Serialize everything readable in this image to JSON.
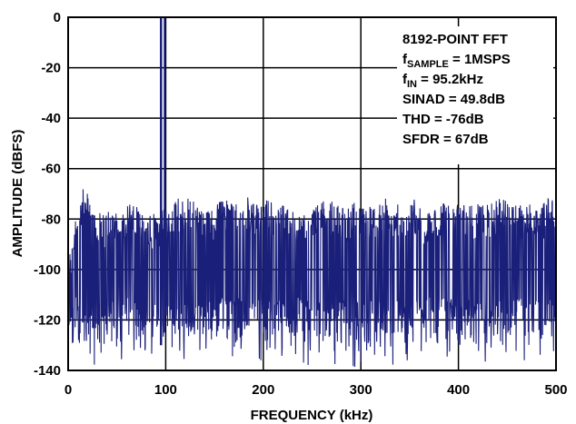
{
  "chart_data": {
    "type": "line",
    "xlabel": "FREQUENCY (kHz)",
    "ylabel": "AMPLITUDE (dBFS)",
    "xlim": [
      0,
      500
    ],
    "ylim": [
      -140,
      0
    ],
    "xticks": [
      "0",
      "100",
      "200",
      "300",
      "400",
      "500"
    ],
    "xtick_values": [
      0,
      100,
      200,
      300,
      400,
      500
    ],
    "yticks": [
      "0",
      "-20",
      "-40",
      "-60",
      "-80",
      "-100",
      "-120",
      "-140"
    ],
    "ytick_values": [
      0,
      -20,
      -40,
      -60,
      -80,
      -100,
      -120,
      -140
    ],
    "grid": true,
    "series": [
      {
        "color": "#1a1f7a",
        "fundamental": {
          "x": 95.2,
          "y": 0
        },
        "noise_floor_mean": -103,
        "noise_range": [
          -139,
          -67
        ],
        "x": [
          0,
          8,
          15,
          25,
          35,
          45,
          55,
          65,
          75,
          85,
          95.2,
          105,
          115,
          125,
          135,
          145,
          155,
          165,
          175,
          185,
          195,
          205,
          215,
          225,
          235,
          245,
          255,
          265,
          275,
          285,
          295,
          305,
          315,
          325,
          335,
          345,
          355,
          365,
          375,
          385,
          395,
          405,
          415,
          425,
          435,
          445,
          455,
          465,
          475,
          485,
          495,
          500
        ],
        "y": [
          -95,
          -78,
          -68,
          -72,
          -78,
          -76,
          -79,
          -72,
          -74,
          -78,
          0,
          -76,
          -70,
          -72,
          -74,
          -77,
          -73,
          -72,
          -75,
          -71,
          -74,
          -72,
          -76,
          -72,
          -78,
          -75,
          -73,
          -72,
          -74,
          -76,
          -71,
          -73,
          -75,
          -70,
          -74,
          -73,
          -72,
          -76,
          -74,
          -73,
          -74,
          -73,
          -75,
          -72,
          -74,
          -69,
          -72,
          -74,
          -73,
          -75,
          -70,
          -72
        ]
      }
    ]
  },
  "annotation": {
    "lines": [
      {
        "main": "8192-POINT FFT",
        "sub": ""
      },
      {
        "main": "f",
        "sub": "SAMPLE",
        "rest": " = 1MSPS"
      },
      {
        "main": "f",
        "sub": "IN",
        "rest": " = 95.2kHz"
      },
      {
        "main": "SINAD = 49.8dB",
        "sub": ""
      },
      {
        "main": "THD = -76dB",
        "sub": ""
      },
      {
        "main": "SFDR = 67dB",
        "sub": ""
      }
    ]
  }
}
